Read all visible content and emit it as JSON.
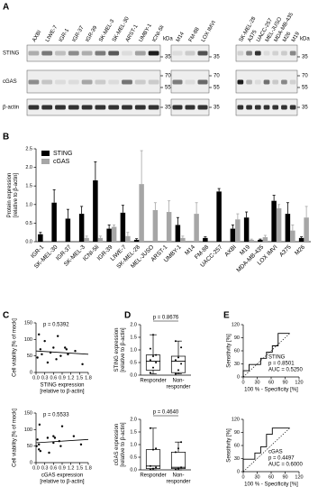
{
  "panel_labels": [
    "A",
    "B",
    "C",
    "D",
    "E"
  ],
  "blot": {
    "groups": [
      [
        "AXBI",
        "LIWE-7",
        "IGR-1",
        "IGR-37",
        "IGR-39",
        "SK-MEL-3",
        "SK-MEL-30",
        "ARST-1",
        "UMBY-1",
        "ICNI-5li"
      ],
      [
        "M14",
        "FM-88",
        "LOX IMVI"
      ],
      [
        "SK-MEL-28",
        "A375",
        "UACC-257",
        "MEL-JUSO",
        "MDA-MB-435",
        "M26",
        "M19"
      ]
    ],
    "rows": [
      "STING",
      "cGAS",
      "β-actin"
    ],
    "unit": "kDa",
    "marker_labels": [
      [
        "35"
      ],
      [
        "70",
        "55"
      ],
      [
        "35"
      ]
    ]
  },
  "chart_data": [
    {
      "type": "bar",
      "ylabel": [
        "Protein expression",
        "[relative to β-actin]"
      ],
      "categories": [
        "IGR-1",
        "SK-MEL-30",
        "IGR-37",
        "SK-MEL-3",
        "ICNI-5li",
        "IGR-39",
        "LIWE-7",
        "SK-MEL-28",
        "MEL-JUSO",
        "ARST-1",
        "UMBY-1",
        "M14",
        "FM-88",
        "UACC-257",
        "AXBI",
        "M19",
        "MDA-MB-435",
        "LOX IMVI",
        "A375",
        "M26"
      ],
      "series": [
        {
          "name": "STING",
          "color": "#000000",
          "values": [
            0.2,
            1.05,
            0.62,
            0.75,
            1.65,
            0.35,
            0.78,
            0.05,
            null,
            null,
            0.45,
            null,
            0.1,
            1.35,
            0.35,
            0.65,
            0.05,
            1.1,
            0.75,
            0.1
          ],
          "errors": [
            0.05,
            0.35,
            0.25,
            0.2,
            0.5,
            0.1,
            0.2,
            0.03,
            null,
            null,
            0.2,
            null,
            0.03,
            0.08,
            0.1,
            0.15,
            0.02,
            0.15,
            0.3,
            0.03
          ]
        },
        {
          "name": "cGAS",
          "color": "#a6a6a6",
          "values": [
            null,
            null,
            null,
            0.1,
            0.1,
            0.4,
            0.15,
            1.55,
            0.85,
            0.8,
            0.1,
            0.75,
            null,
            null,
            0.6,
            0.05,
            0.12,
            0.9,
            0.3,
            0.65
          ],
          "errors": [
            null,
            null,
            null,
            0.05,
            0.05,
            0.05,
            0.1,
            0.9,
            0.2,
            0.3,
            0.05,
            0.3,
            null,
            null,
            0.15,
            0.02,
            0.05,
            0.1,
            0.15,
            0.3
          ]
        }
      ],
      "ylim": [
        0,
        2.5
      ],
      "yticks": [
        {
          "value": 0,
          "label": "0.0"
        },
        0.5,
        {
          "value": 1,
          "label": "1.0"
        },
        1.5,
        {
          "value": 2,
          "label": "2.0"
        },
        2.5
      ]
    },
    {
      "type": "scatter",
      "annotation": "p = 0.5392",
      "ylabel": [
        "Cell viability [% of mock]"
      ],
      "xlabel": [
        "STING expression",
        "[relative to β-actin]"
      ],
      "x": [
        0.05,
        0.1,
        0.15,
        0.2,
        0.3,
        0.4,
        0.5,
        0.6,
        0.7,
        0.75,
        0.85,
        1.0,
        1.05,
        1.1,
        1.35,
        1.6
      ],
      "y": [
        45,
        115,
        70,
        55,
        95,
        30,
        60,
        75,
        40,
        110,
        50,
        75,
        70,
        55,
        65,
        25
      ],
      "fit": {
        "x": [
          0,
          1.8
        ],
        "y": [
          65,
          55
        ]
      },
      "xlim": [
        0,
        1.8
      ],
      "xticks": [
        {
          "value": 0,
          "label": "0.0"
        },
        0.3,
        0.6,
        0.9,
        1.2,
        1.5,
        1.8
      ],
      "ylim": [
        0,
        150
      ],
      "yticks": [
        0,
        50,
        100,
        150
      ]
    },
    {
      "type": "scatter",
      "annotation": "p = 0.5533",
      "ylabel": [
        "Cell viability [% of mock]"
      ],
      "xlabel": [
        "cGAS expression",
        "[relative to β-actin]"
      ],
      "x": [
        0.02,
        0.05,
        0.1,
        0.1,
        0.12,
        0.15,
        0.4,
        0.45,
        0.6,
        0.6,
        0.65,
        0.8,
        0.85,
        0.9,
        1.3,
        1.55
      ],
      "y": [
        50,
        70,
        40,
        55,
        115,
        35,
        75,
        30,
        80,
        60,
        75,
        65,
        50,
        110,
        80,
        55
      ],
      "fit": {
        "x": [
          0,
          1.8
        ],
        "y": [
          60,
          70
        ]
      },
      "xlim": [
        0,
        1.8
      ],
      "xticks": [
        {
          "value": 0,
          "label": "0.0"
        },
        0.3,
        0.6,
        0.9,
        1.2,
        1.5,
        1.8
      ],
      "ylim": [
        0,
        150
      ],
      "yticks": [
        0,
        50,
        100,
        150
      ]
    },
    {
      "type": "box",
      "annotation": "p = 0.8676",
      "ylabel": [
        "STING expression",
        "[relative to β-actin]"
      ],
      "categories": [
        [
          "Responder"
        ],
        [
          "Non-",
          "responder"
        ]
      ],
      "boxes": [
        {
          "min": 0.05,
          "q1": 0.2,
          "median": 0.55,
          "q3": 0.8,
          "max": 1.6,
          "points": [
            0.1,
            0.3,
            0.5,
            0.6,
            0.75,
            0.8,
            1.05,
            1.6
          ]
        },
        {
          "min": 0.05,
          "q1": 0.1,
          "median": 0.55,
          "q3": 0.75,
          "max": 1.35,
          "points": [
            0.05,
            0.2,
            0.45,
            0.6,
            0.7,
            1.1,
            1.35
          ]
        }
      ],
      "ylim": [
        0,
        2
      ],
      "yticks": [
        {
          "value": 0,
          "label": "0.0"
        },
        0.5,
        {
          "value": 1,
          "label": "1.0"
        },
        1.5,
        {
          "value": 2,
          "label": "2.0"
        }
      ]
    },
    {
      "type": "box",
      "annotation": "p = 0.4640",
      "ylabel": [
        "cGAS expression",
        "[relative to β-actin]"
      ],
      "categories": [
        [
          "Responder"
        ],
        [
          "Non-",
          "responder"
        ]
      ],
      "boxes": [
        {
          "min": 0,
          "q1": 0.05,
          "median": 0.15,
          "q3": 0.8,
          "max": 1.65,
          "points": [
            0.02,
            0.05,
            0.1,
            0.15,
            0.8,
            0.85,
            1.65
          ]
        },
        {
          "min": 0,
          "q1": 0.05,
          "median": 0.1,
          "q3": 0.7,
          "max": 1.1,
          "points": [
            0.02,
            0.05,
            0.1,
            0.7,
            0.85,
            1.1
          ]
        }
      ],
      "ylim": [
        0,
        2
      ],
      "yticks": [
        {
          "value": 0,
          "label": "0.0"
        },
        0.5,
        {
          "value": 1,
          "label": "1.0"
        },
        1.5,
        {
          "value": 2,
          "label": "2.0"
        }
      ]
    },
    {
      "type": "roc",
      "annotation": [
        "STING",
        "p = 0.8501",
        "AUC = 0.5250"
      ],
      "xlabel": [
        "100 % - Specificity [%]"
      ],
      "ylabel": [
        "Sensitivity [%]"
      ],
      "x": [
        0,
        0,
        12.5,
        12.5,
        37.5,
        37.5,
        50,
        50,
        62.5,
        62.5,
        75,
        75,
        100
      ],
      "y": [
        0,
        14.3,
        14.3,
        28.6,
        28.6,
        42.9,
        42.9,
        57.1,
        57.1,
        71.4,
        71.4,
        100,
        100
      ],
      "diagonal": [
        0,
        100
      ],
      "xlim": [
        0,
        120
      ],
      "xticks": [
        0,
        30,
        60,
        90,
        120
      ],
      "ylim": [
        0,
        120
      ],
      "yticks": [
        0,
        30,
        60,
        90,
        120
      ]
    },
    {
      "type": "roc",
      "annotation": [
        "cGAS",
        "p = 0.4497",
        "AUC = 0.6000"
      ],
      "xlabel": [
        "100 % - Specificity [%]"
      ],
      "ylabel": [
        "Sensitivity [%]"
      ],
      "x": [
        0,
        0,
        25,
        25,
        37.5,
        37.5,
        50,
        50,
        62.5,
        62.5,
        100
      ],
      "y": [
        0,
        28.6,
        28.6,
        42.9,
        42.9,
        57.1,
        57.1,
        85.7,
        85.7,
        100,
        100
      ],
      "diagonal": [
        0,
        100
      ],
      "xlim": [
        0,
        120
      ],
      "xticks": [
        0,
        30,
        60,
        90,
        120
      ],
      "ylim": [
        0,
        120
      ],
      "yticks": [
        0,
        30,
        60,
        90,
        120
      ]
    }
  ]
}
